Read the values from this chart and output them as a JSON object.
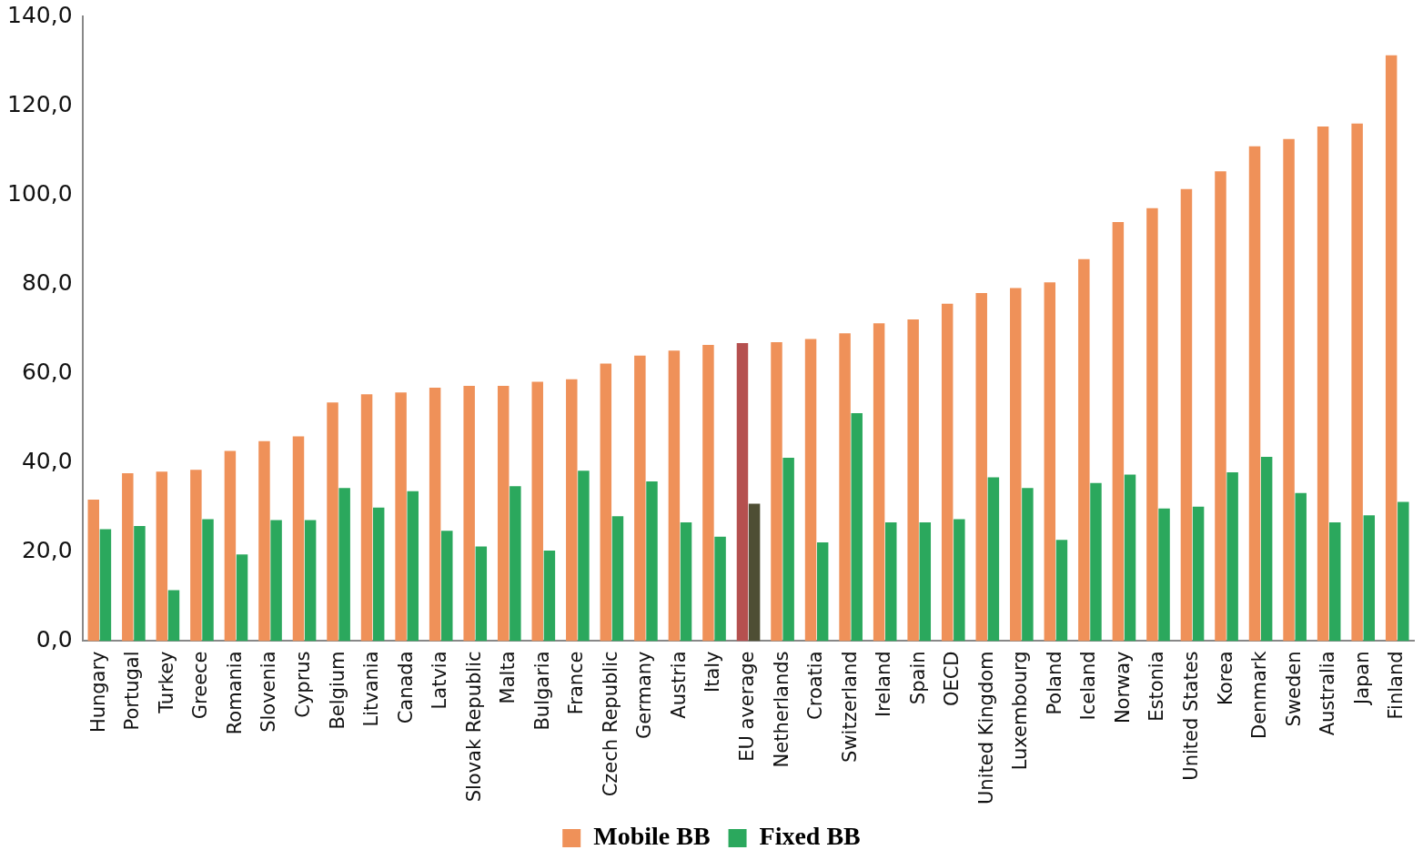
{
  "chart_data": {
    "type": "bar",
    "categories": [
      "Hungary",
      "Portugal",
      "Turkey",
      "Greece",
      "Romania",
      "Slovenia",
      "Cyprus",
      "Belgium",
      "Litvania",
      "Canada",
      "Latvia",
      "Slovak Republic",
      "Malta",
      "Bulgaria",
      "France",
      "Czech Republic",
      "Germany",
      "Austria",
      "Italy",
      "EU average",
      "Netherlands",
      "Croatia",
      "Switzerland",
      "Ireland",
      "Spain",
      "OECD",
      "United Kingdom",
      "Luxembourg",
      "Poland",
      "Iceland",
      "Norway",
      "Estonia",
      "United States",
      "Korea",
      "Denmark",
      "Sweden",
      "Australia",
      "Japan",
      "Finland"
    ],
    "series": [
      {
        "name": "Mobile BB",
        "color": "#ef9159",
        "colors": [
          "#ef9159",
          "#ef9159",
          "#ef9159",
          "#ef9159",
          "#ef9159",
          "#ef9159",
          "#ef9159",
          "#ef9159",
          "#ef9159",
          "#ef9159",
          "#ef9159",
          "#ef9159",
          "#ef9159",
          "#ef9159",
          "#ef9159",
          "#ef9159",
          "#ef9159",
          "#ef9159",
          "#ef9159",
          "#b5504f",
          "#ef9159",
          "#ef9159",
          "#ef9159",
          "#ef9159",
          "#ef9159",
          "#ef9159",
          "#ef9159",
          "#ef9159",
          "#ef9159",
          "#ef9159",
          "#ef9159",
          "#ef9159",
          "#ef9159",
          "#ef9159",
          "#ef9159",
          "#ef9159",
          "#ef9159",
          "#ef9159",
          "#ef9159"
        ],
        "values": [
          31.7,
          37.6,
          38.0,
          38.4,
          42.6,
          44.8,
          45.9,
          53.5,
          55.3,
          55.7,
          56.8,
          57.2,
          57.2,
          58.1,
          58.7,
          62.2,
          64.0,
          65.1,
          66.4,
          66.8,
          67.0,
          67.7,
          69.0,
          71.2,
          72.1,
          75.6,
          78.0,
          79.1,
          80.4,
          85.6,
          93.9,
          97.0,
          101.3,
          105.3,
          110.9,
          112.5,
          115.3,
          116.0,
          131.3
        ]
      },
      {
        "name": "Fixed BB",
        "color": "#2ba85d",
        "colors": [
          "#2ba85d",
          "#2ba85d",
          "#2ba85d",
          "#2ba85d",
          "#2ba85d",
          "#2ba85d",
          "#2ba85d",
          "#2ba85d",
          "#2ba85d",
          "#2ba85d",
          "#2ba85d",
          "#2ba85d",
          "#2ba85d",
          "#2ba85d",
          "#2ba85d",
          "#2ba85d",
          "#2ba85d",
          "#2ba85d",
          "#2ba85d",
          "#4e4e34",
          "#2ba85d",
          "#2ba85d",
          "#2ba85d",
          "#2ba85d",
          "#2ba85d",
          "#2ba85d",
          "#2ba85d",
          "#2ba85d",
          "#2ba85d",
          "#2ba85d",
          "#2ba85d",
          "#2ba85d",
          "#2ba85d",
          "#2ba85d",
          "#2ba85d",
          "#2ba85d",
          "#2ba85d",
          "#2ba85d",
          "#2ba85d"
        ],
        "values": [
          25.1,
          25.8,
          11.4,
          27.3,
          19.4,
          27.1,
          27.1,
          34.3,
          29.9,
          33.6,
          24.7,
          21.2,
          34.7,
          20.3,
          38.2,
          28.0,
          35.8,
          26.6,
          23.4,
          30.8,
          41.1,
          22.1,
          51.1,
          26.6,
          26.6,
          27.3,
          36.7,
          34.3,
          22.7,
          35.4,
          37.3,
          29.7,
          30.1,
          37.8,
          41.3,
          33.2,
          26.6,
          28.2,
          31.2
        ]
      }
    ],
    "ylim": [
      0,
      140
    ],
    "yticks": [
      {
        "value": 0,
        "label": "0,0"
      },
      {
        "value": 20,
        "label": "20,0"
      },
      {
        "value": 40,
        "label": "40,0"
      },
      {
        "value": 60,
        "label": "60,0"
      },
      {
        "value": 80,
        "label": "80,0"
      },
      {
        "value": 100,
        "label": "100,0"
      },
      {
        "value": 120,
        "label": "120,0"
      },
      {
        "value": 140,
        "label": "140,0"
      }
    ],
    "legend": "bottom"
  }
}
